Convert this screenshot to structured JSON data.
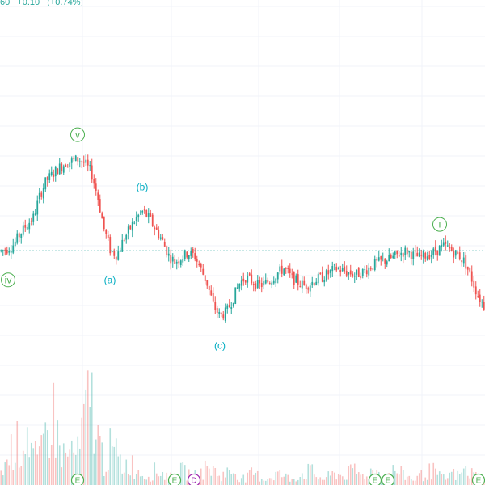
{
  "header": {
    "last_fragment": "60",
    "change": "+0.10",
    "change_pct": "(+0.74%)"
  },
  "colors": {
    "up": "#26a69a",
    "down": "#ef5350",
    "wave_green": "#4caf50",
    "wave_cyan": "#00acc1",
    "dividend": "#9c27b0",
    "grid": "#f0f3fa",
    "price_line": "#26a69a"
  },
  "chart_data": {
    "type": "candlestick",
    "series_note": "price shown as relative scale",
    "price_line_level": 30,
    "price_path": [
      30,
      31,
      33,
      38,
      42,
      45,
      55,
      62,
      65,
      68,
      70,
      71,
      72,
      70,
      66,
      55,
      40,
      30,
      28,
      35,
      40,
      45,
      48,
      45,
      40,
      35,
      28,
      25,
      27,
      29,
      28,
      22,
      15,
      5,
      0,
      2,
      8,
      15,
      18,
      16,
      14,
      15,
      17,
      20,
      22,
      18,
      16,
      14,
      15,
      17,
      18,
      20,
      22,
      21,
      20,
      19,
      20,
      22,
      24,
      25,
      26,
      27,
      29,
      30,
      28,
      27,
      28,
      29,
      31,
      32,
      30,
      28,
      25,
      18,
      10,
      5
    ],
    "volume_path": [
      5,
      8,
      15,
      12,
      20,
      10,
      8,
      18,
      25,
      14,
      9,
      12,
      10,
      22,
      30,
      16,
      8,
      12,
      10,
      6,
      8,
      5,
      4,
      3,
      5,
      4,
      3,
      2,
      5,
      4,
      3,
      4,
      6,
      5,
      3,
      4,
      5,
      3,
      2,
      4,
      3,
      2,
      3,
      4,
      3,
      2,
      3,
      4,
      5,
      3,
      2,
      3,
      4,
      3,
      4,
      5,
      3,
      4,
      5,
      4,
      3,
      5,
      4,
      3,
      2,
      3,
      4,
      5,
      3,
      2,
      4,
      3,
      5,
      4,
      3,
      2
    ],
    "wave_labels": [
      {
        "label": "iv",
        "style": "circle",
        "color": "green",
        "at_index": 0,
        "pos": "below"
      },
      {
        "label": "v",
        "style": "circle",
        "color": "green",
        "at_index": 12,
        "pos": "above"
      },
      {
        "label": "(a)",
        "style": "text",
        "color": "cyan",
        "at_index": 17,
        "pos": "below"
      },
      {
        "label": "(b)",
        "style": "text",
        "color": "cyan",
        "at_index": 22,
        "pos": "above"
      },
      {
        "label": "(c)",
        "style": "text",
        "color": "cyan",
        "at_index": 34,
        "pos": "below"
      },
      {
        "label": "i",
        "style": "circle",
        "color": "green",
        "at_index": 68,
        "pos": "above"
      }
    ],
    "event_markers": [
      {
        "label": "E",
        "type": "earnings",
        "at_index": 12
      },
      {
        "label": "E",
        "type": "earnings",
        "at_index": 27
      },
      {
        "label": "D",
        "type": "dividend",
        "at_index": 30
      },
      {
        "label": "E",
        "type": "earnings",
        "at_index": 58
      },
      {
        "label": "E",
        "type": "earnings",
        "at_index": 60
      },
      {
        "label": "E",
        "type": "earnings",
        "at_index": 75
      }
    ]
  }
}
